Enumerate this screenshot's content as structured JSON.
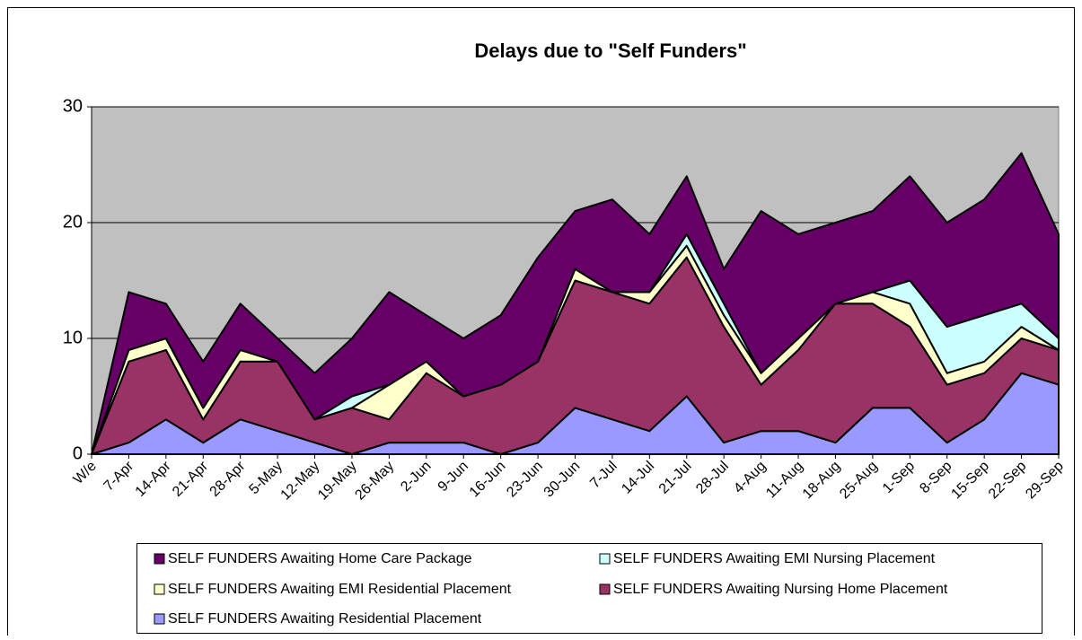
{
  "chart_data": {
    "type": "stacked_area",
    "title": "Delays due to \"Self Funders\"",
    "categories": [
      "W/e",
      "7-Apr",
      "14-Apr",
      "21-Apr",
      "28-Apr",
      "5-May",
      "12-May",
      "19-May",
      "26-May",
      "2-Jun",
      "9-Jun",
      "16-Jun",
      "23-Jun",
      "30-Jun",
      "7-Jul",
      "14-Jul",
      "21-Jul",
      "28-Jul",
      "4-Aug",
      "11-Aug",
      "18-Aug",
      "25-Aug",
      "1-Sep",
      "8-Sep",
      "15-Sep",
      "22-Sep",
      "29-Sep"
    ],
    "series": [
      {
        "name": "SELF FUNDERS Awaiting Home Care Package",
        "color": "#660066",
        "values": [
          0,
          5,
          3,
          4,
          4,
          2,
          4,
          5,
          8,
          4,
          5,
          6,
          9,
          5,
          8,
          5,
          5,
          3,
          14,
          9,
          7,
          7,
          9,
          9,
          10,
          13,
          9
        ]
      },
      {
        "name": "SELF FUNDERS Awaiting EMI Nursing Placement",
        "color": "#ccffff",
        "values": [
          0,
          0,
          0,
          0,
          0,
          0,
          0,
          1,
          0,
          0,
          0,
          0,
          0,
          0,
          0,
          0,
          1,
          1,
          0,
          0,
          0,
          0,
          2,
          4,
          4,
          2,
          1
        ]
      },
      {
        "name": "SELF FUNDERS Awaiting EMI Residential Placement",
        "color": "#ffffcc",
        "values": [
          0,
          1,
          1,
          1,
          1,
          0,
          0,
          0,
          3,
          1,
          0,
          0,
          0,
          1,
          0,
          1,
          1,
          1,
          1,
          1,
          0,
          1,
          2,
          1,
          1,
          1,
          0
        ]
      },
      {
        "name": "SELF FUNDERS Awaiting Nursing Home Placement",
        "color": "#993366",
        "values": [
          0,
          7,
          6,
          2,
          5,
          6,
          2,
          4,
          2,
          6,
          4,
          6,
          7,
          11,
          11,
          11,
          12,
          10,
          4,
          7,
          12,
          9,
          7,
          5,
          4,
          3,
          3
        ]
      },
      {
        "name": "SELF FUNDERS Awaiting Residential Placement",
        "color": "#9999ff",
        "values": [
          0,
          1,
          3,
          1,
          3,
          2,
          1,
          0,
          1,
          1,
          1,
          0,
          1,
          4,
          3,
          2,
          5,
          1,
          2,
          2,
          1,
          4,
          4,
          1,
          3,
          7,
          6
        ]
      }
    ],
    "ylim": [
      0,
      30
    ],
    "yticks": [
      0,
      10,
      20,
      30
    ],
    "grid": true,
    "plot_background": "#c0c0c0",
    "legend": "bottom"
  }
}
